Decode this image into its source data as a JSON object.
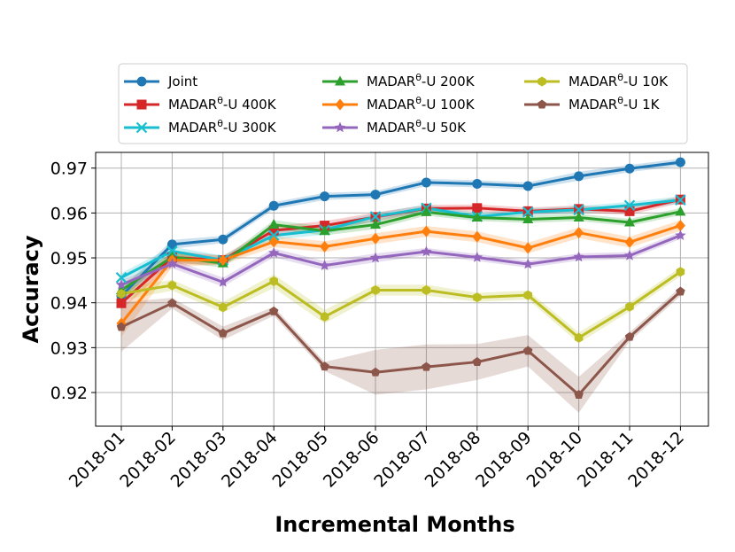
{
  "chart_data": {
    "type": "line",
    "title": "",
    "xlabel": "Incremental Months",
    "ylabel": "Accuracy",
    "categories": [
      "2018-01",
      "2018-02",
      "2018-03",
      "2018-04",
      "2018-05",
      "2018-06",
      "2018-07",
      "2018-08",
      "2018-09",
      "2018-10",
      "2018-11",
      "2018-12"
    ],
    "ylim": [
      0.9125,
      0.9735
    ],
    "yticks": [
      0.92,
      0.93,
      0.94,
      0.95,
      0.96,
      0.97
    ],
    "ytick_labels": [
      "0.92",
      "0.93",
      "0.94",
      "0.95",
      "0.96",
      "0.97"
    ],
    "grid": true,
    "legend_position": "top-center",
    "series": [
      {
        "name": "Joint",
        "label_base": "Joint",
        "label_sup": "",
        "label_rest": "",
        "color": "#1f77b4",
        "marker": "circle",
        "values": [
          0.9415,
          0.953,
          0.9541,
          0.9616,
          0.9637,
          0.9641,
          0.9668,
          0.9665,
          0.966,
          0.9682,
          0.9699,
          0.9713
        ],
        "band": [
          0.0015,
          0.001,
          0.0008,
          0.0008,
          0.0008,
          0.0008,
          0.0008,
          0.0008,
          0.0008,
          0.001,
          0.0008,
          0.0008
        ]
      },
      {
        "name": "MADAR-U 400K",
        "label_base": "MADAR",
        "label_sup": "θ",
        "label_rest": "-U 400K",
        "color": "#d62728",
        "marker": "square",
        "values": [
          0.9399,
          0.9501,
          0.9495,
          0.9561,
          0.9572,
          0.9591,
          0.961,
          0.9611,
          0.9604,
          0.9609,
          0.9604,
          0.963
        ],
        "band": [
          0.0015,
          0.0015,
          0.001,
          0.001,
          0.001,
          0.001,
          0.0008,
          0.0008,
          0.0008,
          0.0008,
          0.0008,
          0.0008
        ]
      },
      {
        "name": "MADAR-U 300K",
        "label_base": "MADAR",
        "label_sup": "θ",
        "label_rest": "-U 300K",
        "color": "#17becf",
        "marker": "x",
        "values": [
          0.9456,
          0.9515,
          0.9495,
          0.955,
          0.9562,
          0.9592,
          0.9611,
          0.9592,
          0.9602,
          0.9607,
          0.9617,
          0.9629
        ],
        "band": [
          0.001,
          0.001,
          0.001,
          0.001,
          0.001,
          0.0008,
          0.0008,
          0.0008,
          0.0008,
          0.0008,
          0.0008,
          0.0008
        ]
      },
      {
        "name": "MADAR-U 200K",
        "label_base": "MADAR",
        "label_sup": "θ",
        "label_rest": "-U 200K",
        "color": "#2ca02c",
        "marker": "triangle",
        "values": [
          0.9428,
          0.9502,
          0.9488,
          0.9574,
          0.956,
          0.9574,
          0.9602,
          0.959,
          0.9586,
          0.959,
          0.9579,
          0.9603
        ],
        "band": [
          0.0015,
          0.001,
          0.001,
          0.001,
          0.001,
          0.001,
          0.0008,
          0.0008,
          0.0008,
          0.0008,
          0.0008,
          0.0008
        ]
      },
      {
        "name": "MADAR-U 100K",
        "label_base": "MADAR",
        "label_sup": "θ",
        "label_rest": "-U 100K",
        "color": "#ff7f0e",
        "marker": "diamond",
        "values": [
          0.9354,
          0.9495,
          0.9495,
          0.9536,
          0.9525,
          0.9543,
          0.9559,
          0.9547,
          0.9522,
          0.9556,
          0.9535,
          0.9572
        ],
        "band": [
          0.003,
          0.0015,
          0.001,
          0.0012,
          0.0012,
          0.0012,
          0.0012,
          0.0012,
          0.0012,
          0.0012,
          0.0012,
          0.0012
        ]
      },
      {
        "name": "MADAR-U 50K",
        "label_base": "MADAR",
        "label_sup": "θ",
        "label_rest": "-U 50K",
        "color": "#9467bd",
        "marker": "star",
        "values": [
          0.944,
          0.9487,
          0.9446,
          0.9511,
          0.9483,
          0.95,
          0.9514,
          0.9501,
          0.9486,
          0.9502,
          0.9505,
          0.955
        ],
        "band": [
          0.001,
          0.001,
          0.001,
          0.001,
          0.001,
          0.001,
          0.0008,
          0.0008,
          0.0008,
          0.0008,
          0.0008,
          0.0008
        ]
      },
      {
        "name": "MADAR-U 10K",
        "label_base": "MADAR",
        "label_sup": "θ",
        "label_rest": "-U 10K",
        "color": "#bcbd22",
        "marker": "hexagon",
        "values": [
          0.942,
          0.9439,
          0.939,
          0.9448,
          0.9369,
          0.9428,
          0.9428,
          0.9412,
          0.9417,
          0.9322,
          0.9391,
          0.9469
        ],
        "band": [
          0.0015,
          0.0012,
          0.0012,
          0.0015,
          0.0015,
          0.0012,
          0.0012,
          0.001,
          0.001,
          0.0012,
          0.001,
          0.001
        ]
      },
      {
        "name": "MADAR-U 1K",
        "label_base": "MADAR",
        "label_sup": "θ",
        "label_rest": "-U 1K",
        "color": "#8c564b",
        "marker": "pentagon",
        "values": [
          0.9346,
          0.9399,
          0.9332,
          0.9381,
          0.9258,
          0.9245,
          0.9257,
          0.9268,
          0.9293,
          0.9195,
          0.9324,
          0.9425
        ],
        "band": [
          0.0055,
          0.0012,
          0.0015,
          0.001,
          0.001,
          0.005,
          0.005,
          0.004,
          0.0035,
          0.004,
          0.001,
          0.001
        ]
      }
    ]
  }
}
